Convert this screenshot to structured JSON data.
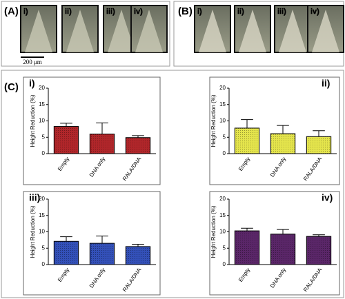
{
  "panels": [
    {
      "label": "(A)",
      "images": [
        "i)",
        "ii)",
        "iii)",
        "iv)"
      ],
      "scale_bar": "200 μm"
    },
    {
      "label": "(B)",
      "images": [
        "i)",
        "ii)",
        "iii)",
        "iv)"
      ]
    },
    {
      "label": "(C)"
    }
  ],
  "chart_data": [
    {
      "type": "bar",
      "title": "i)",
      "y_label": "Height Reduction (%)",
      "categories": [
        "Empty",
        "DNA only",
        "RALA/DNA"
      ],
      "values": [
        8.3,
        6.0,
        4.9
      ],
      "errors": [
        1.0,
        3.4,
        0.6
      ],
      "color": "#b0262a",
      "ylim": [
        0,
        20
      ],
      "yticks": [
        0,
        5,
        10,
        15,
        20
      ]
    },
    {
      "type": "bar",
      "title": "ii)",
      "y_label": "Height Reduction (%)",
      "categories": [
        "Empty",
        "DNA only",
        "RALA/DNA"
      ],
      "values": [
        7.8,
        6.1,
        5.2
      ],
      "errors": [
        2.6,
        2.5,
        1.8
      ],
      "color": "#e4e44c",
      "ylim": [
        0,
        20
      ],
      "yticks": [
        0,
        5,
        10,
        15,
        20
      ]
    },
    {
      "type": "bar",
      "title": "iii)",
      "y_label": "Height Reduction (%)",
      "categories": [
        "Empty",
        "DNA only",
        "RALA/DNA"
      ],
      "values": [
        7.1,
        6.5,
        5.5
      ],
      "errors": [
        1.4,
        2.2,
        0.7
      ],
      "color": "#3350b8",
      "ylim": [
        0,
        20
      ],
      "yticks": [
        0,
        5,
        10,
        15,
        20
      ]
    },
    {
      "type": "bar",
      "title": "iv)",
      "y_label": "Height Reduction (%)",
      "categories": [
        "Empty",
        "DNA only",
        "RALA/DNA"
      ],
      "values": [
        10.3,
        9.3,
        8.6
      ],
      "errors": [
        0.8,
        1.4,
        0.5
      ],
      "color": "#5a2668",
      "ylim": [
        0,
        20
      ],
      "yticks": [
        0,
        5,
        10,
        15,
        20
      ]
    }
  ]
}
